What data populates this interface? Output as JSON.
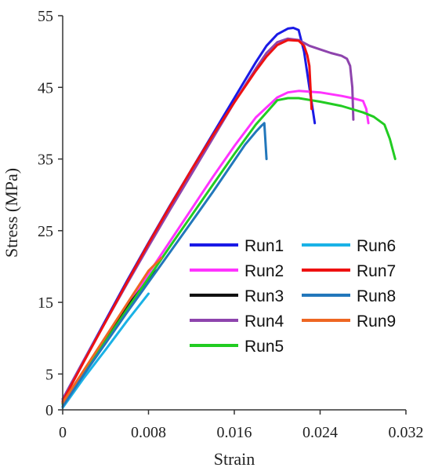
{
  "chart_data": {
    "type": "line",
    "xlabel": "Strain",
    "ylabel": "Stress (MPa)",
    "xlim": [
      0,
      0.032
    ],
    "ylim": [
      0,
      55
    ],
    "xticks": [
      0,
      0.008,
      0.016,
      0.024,
      0.032
    ],
    "xtick_labels": [
      "0",
      "0.008",
      "0.016",
      "0.024",
      "0.032"
    ],
    "yticks": [
      0,
      5,
      15,
      25,
      35,
      45,
      55
    ],
    "ytick_labels": [
      "0",
      "5",
      "15",
      "25",
      "35",
      "45",
      "55"
    ],
    "grid": false,
    "legend_position": "right-middle, two columns",
    "series": [
      {
        "name": "Run1",
        "color": "#1a1ae6",
        "x": [
          0,
          0.002,
          0.004,
          0.006,
          0.008,
          0.01,
          0.012,
          0.014,
          0.016,
          0.018,
          0.019,
          0.02,
          0.021,
          0.0215,
          0.022,
          0.0225,
          0.023,
          0.0235
        ],
        "y": [
          1.5,
          7,
          12.5,
          18,
          23.3,
          28.5,
          33.5,
          38.5,
          43.5,
          48.5,
          50.8,
          52.4,
          53.2,
          53.3,
          53,
          50,
          45,
          40
        ]
      },
      {
        "name": "Run2",
        "color": "#ff33ff",
        "x": [
          0,
          0.002,
          0.004,
          0.006,
          0.008,
          0.01,
          0.012,
          0.014,
          0.016,
          0.018,
          0.02,
          0.021,
          0.022,
          0.024,
          0.026,
          0.027,
          0.028,
          0.0283,
          0.0285
        ],
        "y": [
          1,
          5.5,
          10,
          14.5,
          19,
          23.5,
          28,
          32.5,
          36.8,
          40.8,
          43.6,
          44.3,
          44.5,
          44.3,
          43.8,
          43.5,
          43.1,
          42,
          40
        ]
      },
      {
        "name": "Run3",
        "color": "#111111",
        "x": [
          0,
          0.002,
          0.004,
          0.006,
          0.008,
          0.0088
        ],
        "y": [
          1,
          5.5,
          10,
          14.4,
          18.2,
          19.5
        ]
      },
      {
        "name": "Run4",
        "color": "#8e44ad",
        "x": [
          0,
          0.002,
          0.004,
          0.006,
          0.008,
          0.01,
          0.012,
          0.014,
          0.016,
          0.018,
          0.019,
          0.02,
          0.021,
          0.022,
          0.023,
          0.024,
          0.025,
          0.026,
          0.0265,
          0.0268,
          0.027,
          0.0271
        ],
        "y": [
          1.5,
          7,
          12.3,
          17.6,
          22.8,
          27.9,
          32.9,
          37.9,
          42.9,
          47.6,
          49.8,
          51.3,
          51.8,
          51.6,
          50.8,
          50.3,
          49.8,
          49.4,
          49,
          48,
          45,
          40.5
        ]
      },
      {
        "name": "Run5",
        "color": "#22cc22",
        "x": [
          0,
          0.002,
          0.004,
          0.006,
          0.008,
          0.01,
          0.012,
          0.014,
          0.016,
          0.018,
          0.02,
          0.021,
          0.022,
          0.024,
          0.026,
          0.028,
          0.029,
          0.03,
          0.0305,
          0.031
        ],
        "y": [
          0.8,
          5.2,
          9.6,
          14,
          18.4,
          22.8,
          27.1,
          31.4,
          35.7,
          39.8,
          43.2,
          43.5,
          43.5,
          43,
          42.4,
          41.5,
          40.9,
          39.8,
          37.8,
          35
        ]
      },
      {
        "name": "Run6",
        "color": "#1ab2e6",
        "x": [
          0,
          0.002,
          0.004,
          0.006,
          0.008
        ],
        "y": [
          0.3,
          4.5,
          8.4,
          12.4,
          16.2
        ]
      },
      {
        "name": "Run7",
        "color": "#ee1111",
        "x": [
          0,
          0.002,
          0.004,
          0.006,
          0.008,
          0.01,
          0.012,
          0.014,
          0.016,
          0.018,
          0.019,
          0.02,
          0.021,
          0.022,
          0.0225,
          0.0228,
          0.023,
          0.0231,
          0.0232
        ],
        "y": [
          1.2,
          6.8,
          12.3,
          17.8,
          23.2,
          28.4,
          33.5,
          38.3,
          42.9,
          47.3,
          49.3,
          50.9,
          51.6,
          51.5,
          50.8,
          49.5,
          48,
          45,
          42
        ]
      },
      {
        "name": "Run8",
        "color": "#2277bb",
        "x": [
          0,
          0.002,
          0.004,
          0.006,
          0.008,
          0.01,
          0.012,
          0.014,
          0.016,
          0.017,
          0.018,
          0.0185,
          0.0188,
          0.019
        ],
        "y": [
          0.5,
          5,
          9.3,
          13.6,
          17.8,
          22,
          26.2,
          30.4,
          34.8,
          37,
          38.8,
          39.6,
          40,
          35
        ]
      },
      {
        "name": "Run9",
        "color": "#ee6622",
        "x": [
          0,
          0.002,
          0.004,
          0.006,
          0.008,
          0.0092
        ],
        "y": [
          1,
          5.6,
          10.2,
          14.8,
          19.4,
          21.2
        ]
      }
    ]
  }
}
